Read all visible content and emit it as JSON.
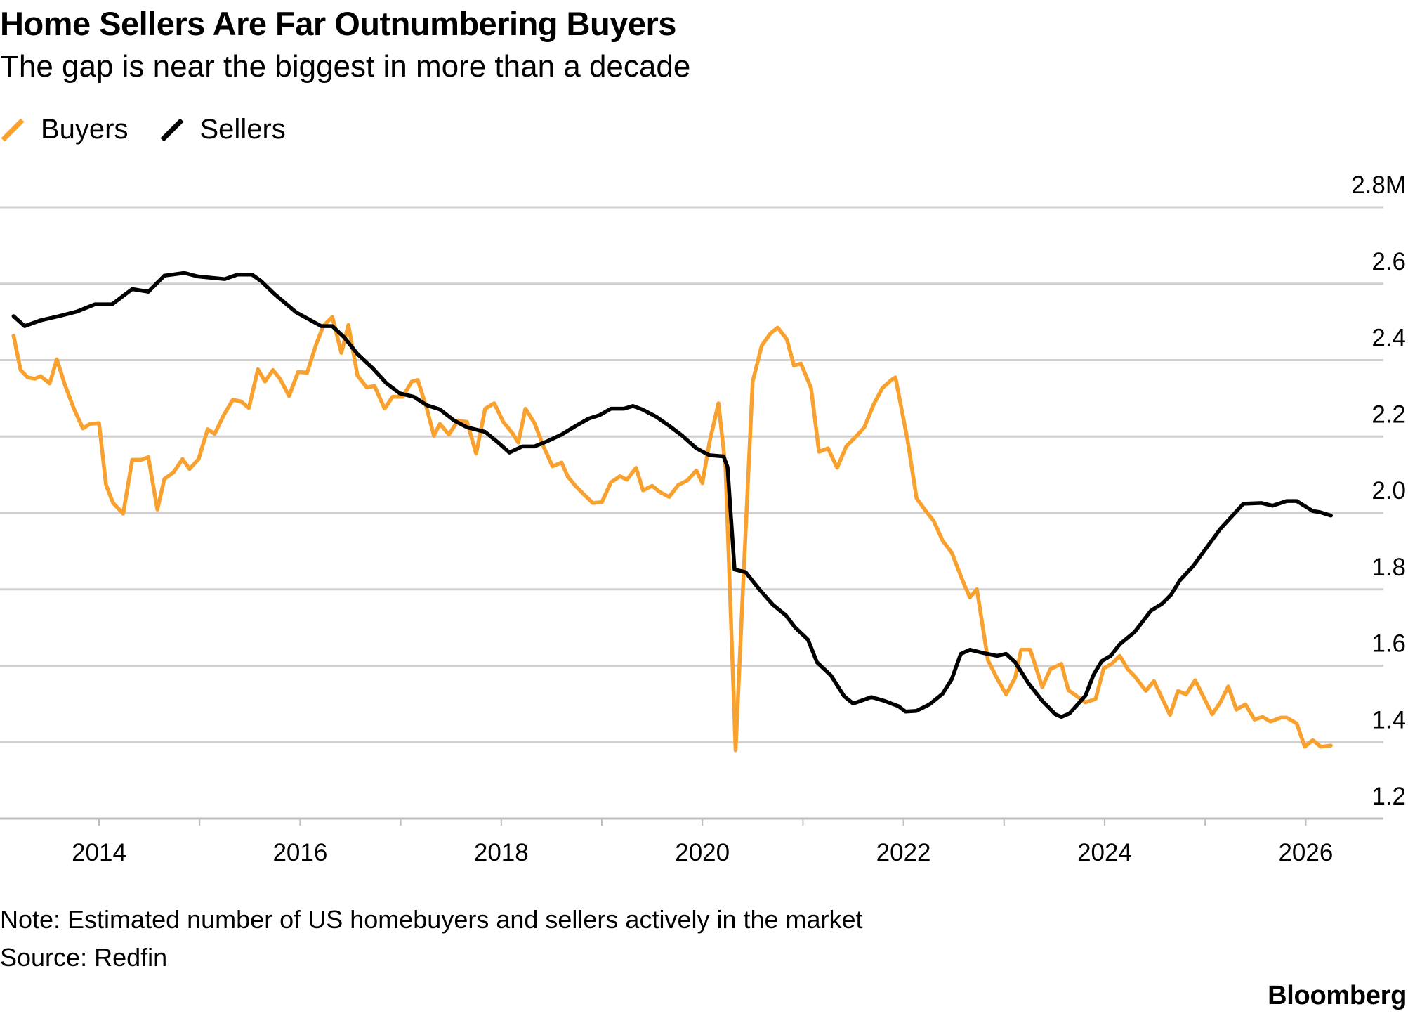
{
  "header": {
    "title": "Home Sellers Are Far Outnumbering Buyers",
    "subtitle": "The gap is near the biggest in more than a decade"
  },
  "legend": [
    {
      "label": "Buyers",
      "color": "#F9A12E"
    },
    {
      "label": "Sellers",
      "color": "#000000"
    }
  ],
  "footer": {
    "note": "Note: Estimated number of US homebuyers and sellers actively in the market",
    "source": "Source: Redfin",
    "brand": "Bloomberg"
  },
  "chart_data": {
    "type": "line",
    "title": "Home Sellers Are Far Outnumbering Buyers",
    "subtitle": "The gap is near the biggest in more than a decade",
    "xlabel": "",
    "ylabel": "",
    "unit": "M",
    "xlim": [
      2013.0,
      2026.6
    ],
    "ylim": [
      1.2,
      2.8
    ],
    "y_ticks": [
      {
        "value": 2.8,
        "label": "2.8M"
      },
      {
        "value": 2.6,
        "label": "2.6"
      },
      {
        "value": 2.4,
        "label": "2.4"
      },
      {
        "value": 2.2,
        "label": "2.2"
      },
      {
        "value": 2.0,
        "label": "2.0"
      },
      {
        "value": 1.8,
        "label": "1.8"
      },
      {
        "value": 1.6,
        "label": "1.6"
      },
      {
        "value": 1.4,
        "label": "1.4"
      },
      {
        "value": 1.2,
        "label": "1.2"
      }
    ],
    "x_ticks": [
      {
        "value": 2014,
        "label": "2014"
      },
      {
        "value": 2016,
        "label": "2016"
      },
      {
        "value": 2018,
        "label": "2018"
      },
      {
        "value": 2020,
        "label": "2020"
      },
      {
        "value": 2022,
        "label": "2022"
      },
      {
        "value": 2024,
        "label": "2024"
      },
      {
        "value": 2026,
        "label": "2026"
      }
    ],
    "grid": true,
    "legend_position": "top-left",
    "series": [
      {
        "name": "Buyers",
        "color": "#F9A12E",
        "points": [
          [
            2013.15,
            2.464
          ],
          [
            2013.22,
            2.374
          ],
          [
            2013.29,
            2.355
          ],
          [
            2013.36,
            2.351
          ],
          [
            2013.42,
            2.358
          ],
          [
            2013.51,
            2.339
          ],
          [
            2013.58,
            2.402
          ],
          [
            2013.66,
            2.336
          ],
          [
            2013.75,
            2.273
          ],
          [
            2013.84,
            2.221
          ],
          [
            2013.91,
            2.233
          ],
          [
            2014.0,
            2.235
          ],
          [
            2014.07,
            2.073
          ],
          [
            2014.14,
            2.026
          ],
          [
            2014.24,
            1.998
          ],
          [
            2014.33,
            2.139
          ],
          [
            2014.42,
            2.139
          ],
          [
            2014.49,
            2.146
          ],
          [
            2014.58,
            2.009
          ],
          [
            2014.65,
            2.089
          ],
          [
            2014.74,
            2.106
          ],
          [
            2014.83,
            2.141
          ],
          [
            2014.9,
            2.115
          ],
          [
            2014.99,
            2.141
          ],
          [
            2015.08,
            2.219
          ],
          [
            2015.15,
            2.207
          ],
          [
            2015.24,
            2.256
          ],
          [
            2015.33,
            2.296
          ],
          [
            2015.41,
            2.292
          ],
          [
            2015.49,
            2.275
          ],
          [
            2015.58,
            2.376
          ],
          [
            2015.65,
            2.344
          ],
          [
            2015.73,
            2.374
          ],
          [
            2015.8,
            2.351
          ],
          [
            2015.89,
            2.306
          ],
          [
            2015.98,
            2.369
          ],
          [
            2016.07,
            2.367
          ],
          [
            2016.16,
            2.442
          ],
          [
            2016.23,
            2.489
          ],
          [
            2016.32,
            2.513
          ],
          [
            2016.41,
            2.419
          ],
          [
            2016.48,
            2.492
          ],
          [
            2016.57,
            2.36
          ],
          [
            2016.66,
            2.329
          ],
          [
            2016.74,
            2.332
          ],
          [
            2016.84,
            2.273
          ],
          [
            2016.92,
            2.304
          ],
          [
            2017.02,
            2.304
          ],
          [
            2017.11,
            2.344
          ],
          [
            2017.17,
            2.348
          ],
          [
            2017.26,
            2.273
          ],
          [
            2017.33,
            2.202
          ],
          [
            2017.39,
            2.233
          ],
          [
            2017.48,
            2.205
          ],
          [
            2017.57,
            2.242
          ],
          [
            2017.66,
            2.238
          ],
          [
            2017.75,
            2.155
          ],
          [
            2017.84,
            2.273
          ],
          [
            2017.93,
            2.287
          ],
          [
            2018.02,
            2.238
          ],
          [
            2018.11,
            2.209
          ],
          [
            2018.17,
            2.184
          ],
          [
            2018.24,
            2.273
          ],
          [
            2018.33,
            2.235
          ],
          [
            2018.42,
            2.174
          ],
          [
            2018.51,
            2.122
          ],
          [
            2018.6,
            2.132
          ],
          [
            2018.66,
            2.096
          ],
          [
            2018.73,
            2.073
          ],
          [
            2018.82,
            2.049
          ],
          [
            2018.91,
            2.026
          ],
          [
            2019.0,
            2.028
          ],
          [
            2019.09,
            2.08
          ],
          [
            2019.18,
            2.096
          ],
          [
            2019.25,
            2.087
          ],
          [
            2019.34,
            2.118
          ],
          [
            2019.41,
            2.059
          ],
          [
            2019.5,
            2.071
          ],
          [
            2019.58,
            2.054
          ],
          [
            2019.67,
            2.042
          ],
          [
            2019.76,
            2.073
          ],
          [
            2019.85,
            2.085
          ],
          [
            2019.94,
            2.111
          ],
          [
            2020.0,
            2.078
          ],
          [
            2020.07,
            2.184
          ],
          [
            2020.16,
            2.287
          ],
          [
            2020.23,
            2.12
          ],
          [
            2020.33,
            1.379
          ],
          [
            2020.41,
            1.838
          ],
          [
            2020.5,
            2.344
          ],
          [
            2020.59,
            2.438
          ],
          [
            2020.68,
            2.471
          ],
          [
            2020.75,
            2.485
          ],
          [
            2020.84,
            2.454
          ],
          [
            2020.91,
            2.386
          ],
          [
            2020.98,
            2.391
          ],
          [
            2021.08,
            2.327
          ],
          [
            2021.16,
            2.16
          ],
          [
            2021.25,
            2.169
          ],
          [
            2021.34,
            2.118
          ],
          [
            2021.43,
            2.174
          ],
          [
            2021.52,
            2.198
          ],
          [
            2021.61,
            2.224
          ],
          [
            2021.7,
            2.282
          ],
          [
            2021.79,
            2.327
          ],
          [
            2021.88,
            2.348
          ],
          [
            2021.92,
            2.355
          ],
          [
            2022.04,
            2.191
          ],
          [
            2022.13,
            2.038
          ],
          [
            2022.21,
            2.009
          ],
          [
            2022.3,
            1.979
          ],
          [
            2022.39,
            1.927
          ],
          [
            2022.48,
            1.896
          ],
          [
            2022.59,
            1.821
          ],
          [
            2022.66,
            1.779
          ],
          [
            2022.73,
            1.8
          ],
          [
            2022.84,
            1.614
          ],
          [
            2022.93,
            1.567
          ],
          [
            2023.02,
            1.525
          ],
          [
            2023.11,
            1.569
          ],
          [
            2023.17,
            1.642
          ],
          [
            2023.26,
            1.642
          ],
          [
            2023.38,
            1.544
          ],
          [
            2023.46,
            1.591
          ],
          [
            2023.57,
            1.605
          ],
          [
            2023.64,
            1.536
          ],
          [
            2023.81,
            1.504
          ],
          [
            2023.91,
            1.513
          ],
          [
            2023.99,
            1.593
          ],
          [
            2024.07,
            1.605
          ],
          [
            2024.15,
            1.626
          ],
          [
            2024.23,
            1.591
          ],
          [
            2024.3,
            1.572
          ],
          [
            2024.41,
            1.534
          ],
          [
            2024.49,
            1.56
          ],
          [
            2024.65,
            1.471
          ],
          [
            2024.73,
            1.534
          ],
          [
            2024.81,
            1.525
          ],
          [
            2024.9,
            1.562
          ],
          [
            2025.07,
            1.473
          ],
          [
            2025.15,
            1.504
          ],
          [
            2025.23,
            1.546
          ],
          [
            2025.31,
            1.485
          ],
          [
            2025.4,
            1.499
          ],
          [
            2025.49,
            1.459
          ],
          [
            2025.57,
            1.466
          ],
          [
            2025.65,
            1.454
          ],
          [
            2025.75,
            1.464
          ],
          [
            2025.81,
            1.464
          ],
          [
            2025.91,
            1.449
          ],
          [
            2025.99,
            1.388
          ],
          [
            2026.07,
            1.405
          ],
          [
            2026.15,
            1.388
          ],
          [
            2026.25,
            1.391
          ]
        ]
      },
      {
        "name": "Sellers",
        "color": "#000000",
        "points": [
          [
            2013.15,
            2.515
          ],
          [
            2013.26,
            2.489
          ],
          [
            2013.42,
            2.504
          ],
          [
            2013.6,
            2.515
          ],
          [
            2013.78,
            2.527
          ],
          [
            2013.96,
            2.546
          ],
          [
            2014.13,
            2.546
          ],
          [
            2014.33,
            2.586
          ],
          [
            2014.49,
            2.579
          ],
          [
            2014.65,
            2.621
          ],
          [
            2014.85,
            2.628
          ],
          [
            2014.98,
            2.619
          ],
          [
            2015.25,
            2.612
          ],
          [
            2015.38,
            2.624
          ],
          [
            2015.52,
            2.624
          ],
          [
            2015.61,
            2.607
          ],
          [
            2015.74,
            2.574
          ],
          [
            2015.96,
            2.525
          ],
          [
            2016.21,
            2.489
          ],
          [
            2016.32,
            2.489
          ],
          [
            2016.44,
            2.459
          ],
          [
            2016.57,
            2.416
          ],
          [
            2016.72,
            2.379
          ],
          [
            2016.86,
            2.339
          ],
          [
            2016.99,
            2.313
          ],
          [
            2017.13,
            2.304
          ],
          [
            2017.26,
            2.282
          ],
          [
            2017.39,
            2.271
          ],
          [
            2017.53,
            2.242
          ],
          [
            2017.66,
            2.224
          ],
          [
            2017.84,
            2.212
          ],
          [
            2017.97,
            2.184
          ],
          [
            2018.08,
            2.158
          ],
          [
            2018.21,
            2.174
          ],
          [
            2018.33,
            2.174
          ],
          [
            2018.46,
            2.188
          ],
          [
            2018.6,
            2.205
          ],
          [
            2018.73,
            2.226
          ],
          [
            2018.87,
            2.247
          ],
          [
            2018.98,
            2.256
          ],
          [
            2019.09,
            2.273
          ],
          [
            2019.22,
            2.273
          ],
          [
            2019.31,
            2.28
          ],
          [
            2019.4,
            2.271
          ],
          [
            2019.54,
            2.252
          ],
          [
            2019.67,
            2.228
          ],
          [
            2019.8,
            2.202
          ],
          [
            2019.94,
            2.169
          ],
          [
            2020.07,
            2.151
          ],
          [
            2020.21,
            2.148
          ],
          [
            2020.25,
            2.12
          ],
          [
            2020.32,
            1.852
          ],
          [
            2020.43,
            1.845
          ],
          [
            2020.56,
            1.802
          ],
          [
            2020.7,
            1.76
          ],
          [
            2020.83,
            1.732
          ],
          [
            2020.92,
            1.701
          ],
          [
            2021.05,
            1.668
          ],
          [
            2021.14,
            1.609
          ],
          [
            2021.28,
            1.574
          ],
          [
            2021.41,
            1.52
          ],
          [
            2021.5,
            1.501
          ],
          [
            2021.68,
            1.518
          ],
          [
            2021.81,
            1.508
          ],
          [
            2021.95,
            1.494
          ],
          [
            2022.02,
            1.48
          ],
          [
            2022.13,
            1.482
          ],
          [
            2022.26,
            1.499
          ],
          [
            2022.39,
            1.527
          ],
          [
            2022.48,
            1.565
          ],
          [
            2022.57,
            1.631
          ],
          [
            2022.66,
            1.642
          ],
          [
            2022.8,
            1.633
          ],
          [
            2022.93,
            1.626
          ],
          [
            2023.02,
            1.631
          ],
          [
            2023.11,
            1.609
          ],
          [
            2023.24,
            1.555
          ],
          [
            2023.38,
            1.508
          ],
          [
            2023.51,
            1.473
          ],
          [
            2023.57,
            1.466
          ],
          [
            2023.65,
            1.475
          ],
          [
            2023.81,
            1.522
          ],
          [
            2023.89,
            1.576
          ],
          [
            2023.97,
            1.612
          ],
          [
            2024.06,
            1.626
          ],
          [
            2024.15,
            1.656
          ],
          [
            2024.3,
            1.689
          ],
          [
            2024.46,
            1.744
          ],
          [
            2024.57,
            1.762
          ],
          [
            2024.66,
            1.786
          ],
          [
            2024.75,
            1.824
          ],
          [
            2024.88,
            1.861
          ],
          [
            2025.15,
            1.958
          ],
          [
            2025.38,
            2.024
          ],
          [
            2025.56,
            2.026
          ],
          [
            2025.67,
            2.019
          ],
          [
            2025.81,
            2.031
          ],
          [
            2025.91,
            2.031
          ],
          [
            2026.07,
            2.005
          ],
          [
            2026.14,
            2.002
          ],
          [
            2026.25,
            1.993
          ]
        ]
      }
    ]
  }
}
